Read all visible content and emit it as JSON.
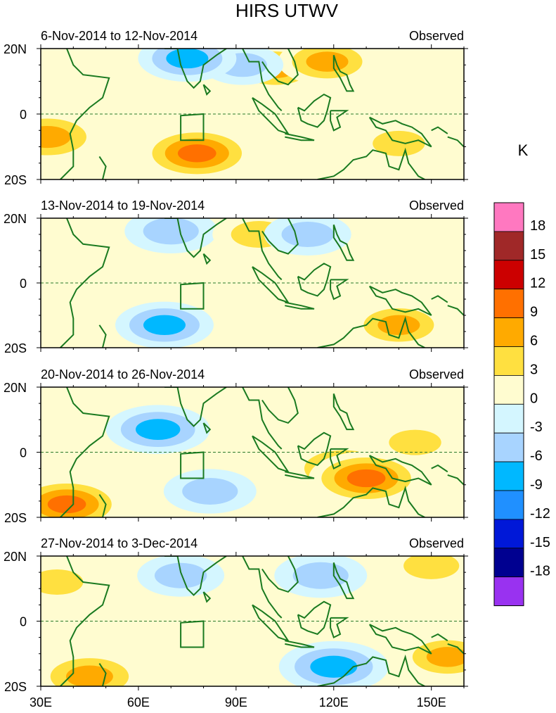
{
  "chart_data": {
    "type": "heatmap",
    "title": "HIRS UTWV",
    "units_label": "K",
    "x_ticks": [
      30,
      60,
      90,
      120,
      150
    ],
    "x_tick_labels": [
      "30E",
      "60E",
      "90E",
      "120E",
      "150E"
    ],
    "y_ticks": [
      20,
      0,
      -20
    ],
    "y_tick_labels": [
      "20N",
      "0",
      "20S"
    ],
    "xlim": [
      30,
      160
    ],
    "ylim": [
      -20,
      20
    ],
    "colorbar": {
      "levels": [
        -18,
        -15,
        -12,
        -9,
        -6,
        -3,
        0,
        3,
        6,
        9,
        12,
        15,
        18
      ],
      "level_labels": [
        "-18",
        "-15",
        "-12",
        "-9",
        "-6",
        "-3",
        "0",
        "3",
        "6",
        "9",
        "12",
        "15",
        "18"
      ],
      "colors": [
        "#9932f0",
        "#000090",
        "#0018d8",
        "#2090ff",
        "#00b8ff",
        "#a8d4ff",
        "#d4f6ff",
        "#fffcd0",
        "#ffe040",
        "#ffaa00",
        "#ff7000",
        "#cc0000",
        "#a02828",
        "#ff78c0"
      ]
    },
    "box_region": {
      "lon": [
        73,
        80
      ],
      "lat": [
        -8,
        0
      ]
    },
    "panels": [
      {
        "period": "6-Nov-2014 to 12-Nov-2014",
        "tag": "Observed",
        "anomalies": [
          {
            "lon": 78,
            "lat": -12,
            "value": 10
          },
          {
            "lon": 32,
            "lat": -7,
            "value": 9
          },
          {
            "lon": 102,
            "lat": 14,
            "value": 7
          },
          {
            "lon": 118,
            "lat": 16,
            "value": 7
          },
          {
            "lon": 140,
            "lat": -9,
            "value": 5
          },
          {
            "lon": 92,
            "lat": 15,
            "value": -4
          },
          {
            "lon": 75,
            "lat": 17,
            "value": -7
          }
        ]
      },
      {
        "period": "13-Nov-2014 to 19-Nov-2014",
        "tag": "Observed",
        "anomalies": [
          {
            "lon": 70,
            "lat": 16,
            "value": -6
          },
          {
            "lon": 68,
            "lat": -13,
            "value": -7
          },
          {
            "lon": 97,
            "lat": 15,
            "value": 6
          },
          {
            "lon": 140,
            "lat": -13,
            "value": 7
          },
          {
            "lon": 85,
            "lat": 2,
            "value": 3
          },
          {
            "lon": 112,
            "lat": 15,
            "value": -5
          }
        ]
      },
      {
        "period": "20-Nov-2014 to 26-Nov-2014",
        "tag": "Observed",
        "anomalies": [
          {
            "lon": 66,
            "lat": 7,
            "value": -8
          },
          {
            "lon": 38,
            "lat": -16,
            "value": 10
          },
          {
            "lon": 123,
            "lat": -5,
            "value": 9
          },
          {
            "lon": 130,
            "lat": -8,
            "value": 10
          },
          {
            "lon": 145,
            "lat": 3,
            "value": 5
          },
          {
            "lon": 82,
            "lat": -12,
            "value": -6
          }
        ]
      },
      {
        "period": "27-Nov-2014 to 3-Dec-2014",
        "tag": "Observed",
        "anomalies": [
          {
            "lon": 120,
            "lat": -14,
            "value": -9
          },
          {
            "lon": 45,
            "lat": -17,
            "value": 9
          },
          {
            "lon": 35,
            "lat": 12,
            "value": 5
          },
          {
            "lon": 150,
            "lat": 17,
            "value": 6
          },
          {
            "lon": 155,
            "lat": -11,
            "value": 7
          },
          {
            "lon": 73,
            "lat": 14,
            "value": -5
          },
          {
            "lon": 116,
            "lat": 14,
            "value": -6
          }
        ]
      }
    ]
  }
}
